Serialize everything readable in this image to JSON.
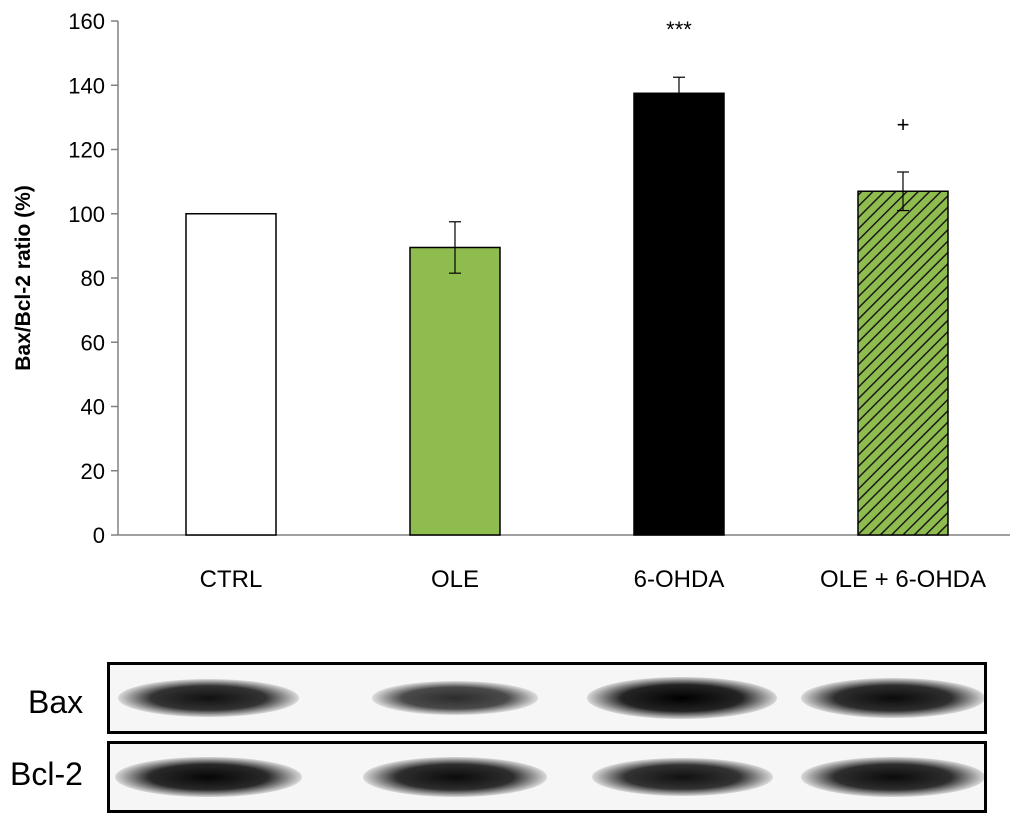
{
  "chart_data": {
    "type": "bar",
    "categories": [
      "CTRL",
      "OLE",
      "6-OHDA",
      "OLE + 6-OHDA"
    ],
    "values": [
      100,
      89.5,
      137.5,
      107
    ],
    "errors": [
      0,
      8,
      5,
      6
    ],
    "annotations": [
      "",
      "",
      "***",
      "+"
    ],
    "ylabel": "Bax/Bcl-2 ratio (%)",
    "xlabel": "",
    "ylim": [
      0,
      160
    ],
    "yticks": [
      0,
      20,
      40,
      60,
      80,
      100,
      120,
      140,
      160
    ],
    "grid": false,
    "bar_styles": [
      {
        "fill": "#ffffff",
        "pattern": "none"
      },
      {
        "fill": "#8fbc4f",
        "pattern": "none"
      },
      {
        "fill": "#000000",
        "pattern": "none"
      },
      {
        "fill": "#8fbc4f",
        "pattern": "diagonal-hatch",
        "hatch_color": "#1a1a1a"
      }
    ]
  },
  "blot": {
    "rows": [
      {
        "label": "Bax",
        "band_intensities": [
          0.85,
          0.6,
          1.0,
          0.9
        ]
      },
      {
        "label": "Bcl-2",
        "band_intensities": [
          0.95,
          0.9,
          0.85,
          0.9
        ]
      }
    ]
  },
  "colors": {
    "green": "#8fbc4f",
    "black": "#000000",
    "axis": "#808080"
  }
}
